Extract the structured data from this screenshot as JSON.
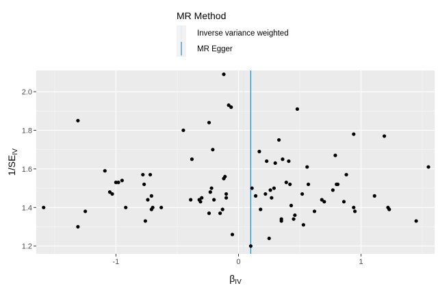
{
  "chart_data": {
    "type": "scatter",
    "title": "",
    "xlabel": "β",
    "xlabel_sub": "IV",
    "ylabel_prefix": "1/SE",
    "ylabel_sub": "IV",
    "xlim": [
      -1.65,
      1.6
    ],
    "ylim": [
      1.16,
      2.11
    ],
    "x_ticks": [
      -1,
      0,
      1
    ],
    "x_tick_labels": [
      "-1",
      "0",
      "1"
    ],
    "y_ticks": [
      1.2,
      1.4,
      1.6,
      1.8,
      2.0
    ],
    "y_tick_labels": [
      "1.2",
      "1.4",
      "1.6",
      "1.8",
      "2.0"
    ],
    "grid": true,
    "legend": {
      "title": "MR Method",
      "position": "top",
      "entries": [
        {
          "label": "Inverse variance weighted",
          "color": "#deebf7"
        },
        {
          "label": "MR Egger",
          "color": "#3182bd"
        }
      ]
    },
    "vlines": [
      {
        "method": "Inverse variance weighted",
        "x": 0.04,
        "color": "#deebf7"
      },
      {
        "method": "MR Egger",
        "x": 0.1,
        "color": "#3182bd"
      }
    ],
    "points": [
      {
        "x": -1.59,
        "y": 1.4
      },
      {
        "x": -1.31,
        "y": 1.85
      },
      {
        "x": -1.31,
        "y": 1.3
      },
      {
        "x": -1.25,
        "y": 1.38
      },
      {
        "x": -1.09,
        "y": 1.59
      },
      {
        "x": -1.05,
        "y": 1.48
      },
      {
        "x": -1.03,
        "y": 1.47
      },
      {
        "x": -1.0,
        "y": 1.53
      },
      {
        "x": -0.98,
        "y": 1.53
      },
      {
        "x": -0.95,
        "y": 1.54
      },
      {
        "x": -0.92,
        "y": 1.4
      },
      {
        "x": -0.78,
        "y": 1.57
      },
      {
        "x": -0.77,
        "y": 1.52
      },
      {
        "x": -0.76,
        "y": 1.33
      },
      {
        "x": -0.74,
        "y": 1.44
      },
      {
        "x": -0.72,
        "y": 1.57
      },
      {
        "x": -0.71,
        "y": 1.46
      },
      {
        "x": -0.71,
        "y": 1.39
      },
      {
        "x": -0.7,
        "y": 1.4
      },
      {
        "x": -0.63,
        "y": 1.4
      },
      {
        "x": -0.45,
        "y": 1.8
      },
      {
        "x": -0.38,
        "y": 1.65
      },
      {
        "x": -0.39,
        "y": 1.44
      },
      {
        "x": -0.32,
        "y": 1.44
      },
      {
        "x": -0.31,
        "y": 1.43
      },
      {
        "x": -0.3,
        "y": 1.45
      },
      {
        "x": -0.24,
        "y": 1.84
      },
      {
        "x": -0.23,
        "y": 1.48
      },
      {
        "x": -0.22,
        "y": 1.5
      },
      {
        "x": -0.21,
        "y": 1.7
      },
      {
        "x": -0.2,
        "y": 1.44
      },
      {
        "x": -0.24,
        "y": 1.37
      },
      {
        "x": -0.15,
        "y": 1.37
      },
      {
        "x": -0.12,
        "y": 2.09
      },
      {
        "x": -0.12,
        "y": 1.55
      },
      {
        "x": -0.11,
        "y": 1.56
      },
      {
        "x": -0.1,
        "y": 1.47
      },
      {
        "x": -0.1,
        "y": 1.45
      },
      {
        "x": -0.13,
        "y": 1.39
      },
      {
        "x": -0.08,
        "y": 1.93
      },
      {
        "x": -0.06,
        "y": 1.92
      },
      {
        "x": -0.05,
        "y": 1.26
      },
      {
        "x": 0.11,
        "y": 1.5
      },
      {
        "x": 0.1,
        "y": 1.2
      },
      {
        "x": 0.14,
        "y": 1.46
      },
      {
        "x": 0.17,
        "y": 1.69
      },
      {
        "x": 0.18,
        "y": 1.39
      },
      {
        "x": 0.22,
        "y": 1.47
      },
      {
        "x": 0.23,
        "y": 1.64
      },
      {
        "x": 0.25,
        "y": 1.24
      },
      {
        "x": 0.26,
        "y": 1.49
      },
      {
        "x": 0.27,
        "y": 1.45
      },
      {
        "x": 0.29,
        "y": 1.5
      },
      {
        "x": 0.3,
        "y": 1.63
      },
      {
        "x": 0.33,
        "y": 1.75
      },
      {
        "x": 0.35,
        "y": 1.33
      },
      {
        "x": 0.35,
        "y": 1.34
      },
      {
        "x": 0.36,
        "y": 1.65
      },
      {
        "x": 0.39,
        "y": 1.53
      },
      {
        "x": 0.41,
        "y": 1.64
      },
      {
        "x": 0.42,
        "y": 1.52
      },
      {
        "x": 0.43,
        "y": 1.41
      },
      {
        "x": 0.45,
        "y": 1.34
      },
      {
        "x": 0.46,
        "y": 1.36
      },
      {
        "x": 0.48,
        "y": 1.91
      },
      {
        "x": 0.52,
        "y": 1.47
      },
      {
        "x": 0.53,
        "y": 1.31
      },
      {
        "x": 0.56,
        "y": 1.61
      },
      {
        "x": 0.57,
        "y": 1.52
      },
      {
        "x": 0.62,
        "y": 1.38
      },
      {
        "x": 0.68,
        "y": 1.44
      },
      {
        "x": 0.7,
        "y": 1.43
      },
      {
        "x": 0.77,
        "y": 1.49
      },
      {
        "x": 0.79,
        "y": 1.67
      },
      {
        "x": 0.8,
        "y": 1.52
      },
      {
        "x": 0.81,
        "y": 1.52
      },
      {
        "x": 0.86,
        "y": 1.43
      },
      {
        "x": 0.88,
        "y": 1.57
      },
      {
        "x": 0.94,
        "y": 1.78
      },
      {
        "x": 0.94,
        "y": 1.4
      },
      {
        "x": 0.95,
        "y": 1.38
      },
      {
        "x": 1.11,
        "y": 1.46
      },
      {
        "x": 1.19,
        "y": 1.77
      },
      {
        "x": 1.22,
        "y": 1.4
      },
      {
        "x": 1.23,
        "y": 1.39
      },
      {
        "x": 1.45,
        "y": 1.33
      },
      {
        "x": 1.55,
        "y": 1.61
      }
    ]
  }
}
